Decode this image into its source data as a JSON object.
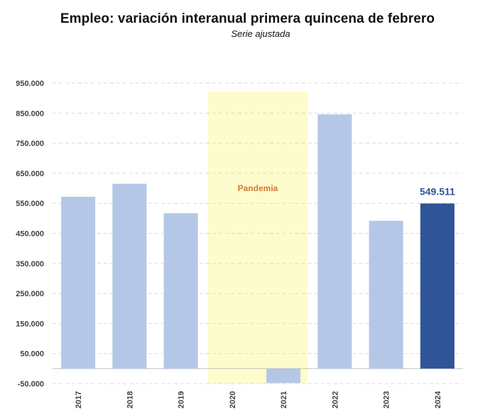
{
  "chart_data": {
    "type": "bar",
    "title": "Empleo: variación interanual primera quincena de febrero",
    "subtitle": "Serie ajustada",
    "xlabel": "",
    "ylabel": "",
    "categories": [
      "2017",
      "2018",
      "2019",
      "2020",
      "2021",
      "2022",
      "2023",
      "2024"
    ],
    "values": [
      572000,
      615000,
      517000,
      null,
      -48000,
      846000,
      492000,
      549511
    ],
    "ylim": [
      -50000,
      950000
    ],
    "yticks": [
      -50000,
      50000,
      150000,
      250000,
      350000,
      450000,
      550000,
      650000,
      750000,
      850000,
      950000
    ],
    "ytick_labels": [
      "-50.000",
      "50.000",
      "150.000",
      "250.000",
      "350.000",
      "450.000",
      "550.000",
      "650.000",
      "750.000",
      "850.000",
      "950.000"
    ],
    "grid": true,
    "legend": "none",
    "highlight": {
      "category": "2024",
      "label": "549.511"
    },
    "shaded_period": {
      "from": "2020",
      "to": "2021",
      "label": "Pandemia"
    },
    "colors": {
      "bar": "#b4c7e7",
      "highlight_bar": "#2f5597",
      "highlight_label": "#2f5597",
      "shade": "#fdfccc",
      "shade_label": "#d27a35",
      "grid": "#d9d9d9",
      "axis": "#bfbfbf",
      "tick_text": "#404040"
    }
  }
}
